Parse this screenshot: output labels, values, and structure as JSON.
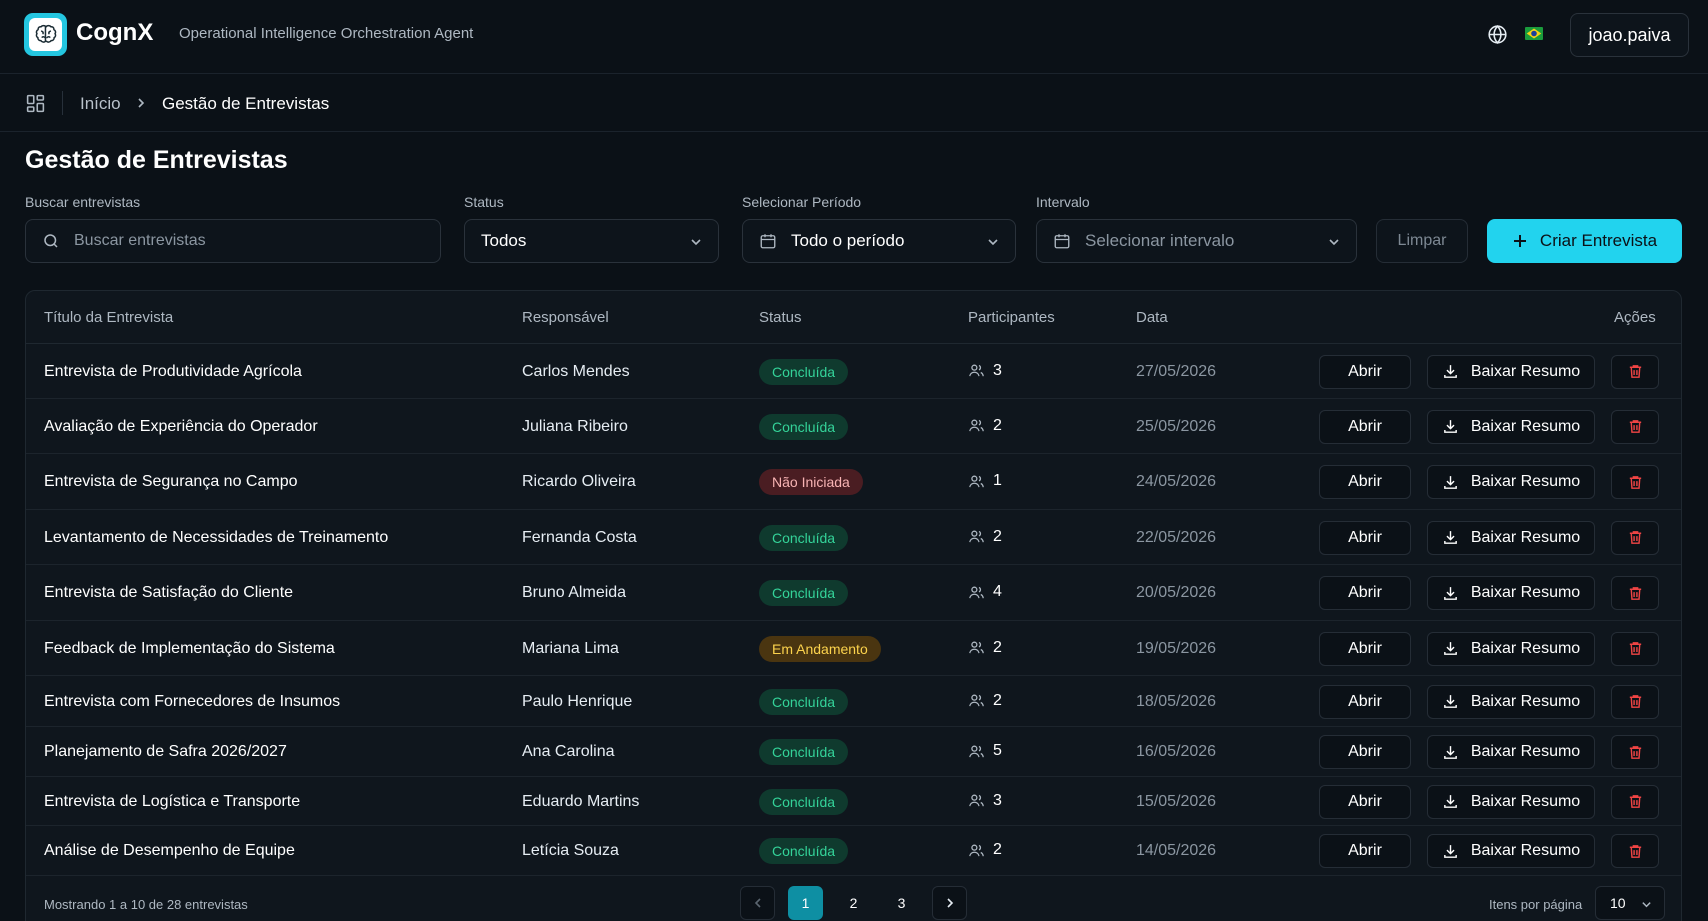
{
  "header": {
    "app_name": "CognX",
    "subtitle": "Operational Intelligence Orchestration Agent",
    "language_icon": "globe-icon",
    "flag": "brazil-flag",
    "user": "joao.paiva"
  },
  "breadcrumb": {
    "home": "Início",
    "current": "Gestão de Entrevistas"
  },
  "page": {
    "title": "Gestão de Entrevistas"
  },
  "filters": {
    "search_label": "Buscar entrevistas",
    "search_placeholder": "Buscar entrevistas",
    "status_label": "Status",
    "status_value": "Todos",
    "period_label": "Selecionar Período",
    "period_value": "Todo o período",
    "interval_label": "Intervalo",
    "interval_placeholder": "Selecionar intervalo",
    "clear_label": "Limpar",
    "create_label": "Criar Entrevista"
  },
  "table": {
    "columns": {
      "title": "Título da Entrevista",
      "owner": "Responsável",
      "status": "Status",
      "participants": "Participantes",
      "date": "Data",
      "actions": "Ações"
    },
    "open_label": "Abrir",
    "download_label": "Baixar Resumo",
    "rows": [
      {
        "title": "Entrevista de Produtividade Agrícola",
        "owner": "Carlos Mendes",
        "status": "Concluída",
        "status_kind": "done",
        "participants": "3",
        "date": "27/05/2026"
      },
      {
        "title": "Avaliação de Experiência do Operador",
        "owner": "Juliana Ribeiro",
        "status": "Concluída",
        "status_kind": "done",
        "participants": "2",
        "date": "25/05/2026"
      },
      {
        "title": "Entrevista de Segurança no Campo",
        "owner": "Ricardo Oliveira",
        "status": "Não Iniciada",
        "status_kind": "notstarted",
        "participants": "1",
        "date": "24/05/2026"
      },
      {
        "title": "Levantamento de Necessidades de Treinamento",
        "owner": "Fernanda Costa",
        "status": "Concluída",
        "status_kind": "done",
        "participants": "2",
        "date": "22/05/2026"
      },
      {
        "title": "Entrevista de Satisfação do Cliente",
        "owner": "Bruno Almeida",
        "status": "Concluída",
        "status_kind": "done",
        "participants": "4",
        "date": "20/05/2026"
      },
      {
        "title": "Feedback de Implementação do Sistema",
        "owner": "Mariana Lima",
        "status": "Em Andamento",
        "status_kind": "progress",
        "participants": "2",
        "date": "19/05/2026"
      },
      {
        "title": "Entrevista com Fornecedores de Insumos",
        "owner": "Paulo Henrique",
        "status": "Concluída",
        "status_kind": "done",
        "participants": "2",
        "date": "18/05/2026"
      },
      {
        "title": "Planejamento de Safra 2026/2027",
        "owner": "Ana Carolina",
        "status": "Concluída",
        "status_kind": "done",
        "participants": "5",
        "date": "16/05/2026"
      },
      {
        "title": "Entrevista de Logística e Transporte",
        "owner": "Eduardo Martins",
        "status": "Concluída",
        "status_kind": "done",
        "participants": "3",
        "date": "15/05/2026"
      },
      {
        "title": "Análise de Desempenho de Equipe",
        "owner": "Letícia Souza",
        "status": "Concluída",
        "status_kind": "done",
        "participants": "2",
        "date": "14/05/2026"
      }
    ]
  },
  "pagination": {
    "summary": "Mostrando 1 a 10 de 28 entrevistas",
    "pages": [
      "1",
      "2",
      "3"
    ],
    "current_page": "1",
    "per_page_label": "Itens por página",
    "per_page_value": "10"
  },
  "colors": {
    "background": "#0b1117",
    "accent": "#22d3ee",
    "done": "#34d399",
    "not_started": "#f8b4b4",
    "in_progress": "#fcd34d",
    "delete": "#ef4444"
  }
}
